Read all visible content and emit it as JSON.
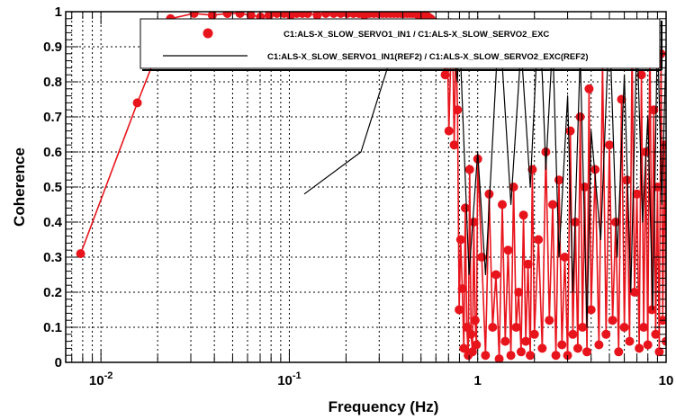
{
  "chart_data": {
    "type": "line",
    "xlabel": "Frequency (Hz)",
    "ylabel": "Coherence",
    "xscale": "log",
    "xlim": [
      0.0065,
      10
    ],
    "ylim": [
      0,
      1
    ],
    "grid": true,
    "legend_position": "top-right",
    "x_tick_labels": [
      {
        "value": 0.01,
        "base": "10",
        "exp": "-2"
      },
      {
        "value": 0.1,
        "base": "10",
        "exp": "-1"
      },
      {
        "value": 1,
        "base": "1",
        "exp": ""
      },
      {
        "value": 10,
        "base": "10",
        "exp": ""
      }
    ],
    "y_tick_labels": [
      {
        "value": 0,
        "label": "0"
      },
      {
        "value": 0.1,
        "label": "0.1"
      },
      {
        "value": 0.2,
        "label": "0.2"
      },
      {
        "value": 0.3,
        "label": "0.3"
      },
      {
        "value": 0.4,
        "label": "0.4"
      },
      {
        "value": 0.5,
        "label": "0.5"
      },
      {
        "value": 0.6,
        "label": "0.6"
      },
      {
        "value": 0.7,
        "label": "0.7"
      },
      {
        "value": 0.8,
        "label": "0.8"
      },
      {
        "value": 0.9,
        "label": "0.9"
      },
      {
        "value": 1,
        "label": "1"
      }
    ],
    "series": [
      {
        "name": "C1:ALS-X_SLOW_SERVO1_IN1 / C1:ALS-X_SLOW_SERVO2_EXC",
        "style": "line-markers",
        "color": "#e8141c",
        "x": [
          0.0078,
          0.0156,
          0.0234,
          0.0312,
          0.039,
          0.0469,
          0.0547,
          0.0625,
          0.0703,
          0.0781,
          0.0859,
          0.0938,
          0.1016,
          0.1094,
          0.1172,
          0.125,
          0.1406,
          0.1562,
          0.1719,
          0.1875,
          0.2031,
          0.2188,
          0.2344,
          0.25,
          0.2656,
          0.2812,
          0.2969,
          0.3125,
          0.3281,
          0.3438,
          0.3594,
          0.375,
          0.3906,
          0.4062,
          0.4219,
          0.4375,
          0.4531,
          0.4688,
          0.4844,
          0.5,
          0.5156,
          0.5312,
          0.5469,
          0.5625,
          0.5781,
          0.5938,
          0.6094,
          0.625,
          0.6406,
          0.6562,
          0.6719,
          0.6875,
          0.7031,
          0.7188,
          0.7344,
          0.75,
          0.7656,
          0.7812,
          0.7969,
          0.8125,
          0.8281,
          0.8438,
          0.8594,
          0.875,
          0.8906,
          0.9062,
          0.9219,
          0.9375,
          0.9531,
          0.9688,
          0.9844,
          1.0,
          1.05,
          1.1,
          1.15,
          1.2,
          1.25,
          1.3,
          1.35,
          1.4,
          1.45,
          1.5,
          1.55,
          1.6,
          1.65,
          1.7,
          1.75,
          1.8,
          1.85,
          1.9,
          1.95,
          2.0,
          2.1,
          2.2,
          2.3,
          2.4,
          2.5,
          2.6,
          2.7,
          2.8,
          2.9,
          3.0,
          3.1,
          3.2,
          3.3,
          3.4,
          3.5,
          3.6,
          3.7,
          3.8,
          3.9,
          4.0,
          4.2,
          4.4,
          4.6,
          4.8,
          5.0,
          5.2,
          5.4,
          5.6,
          5.8,
          6.0,
          6.2,
          6.4,
          6.6,
          6.8,
          7.0,
          7.2,
          7.4,
          7.6,
          7.8,
          8.0,
          8.2,
          8.4,
          8.6,
          8.8,
          9.0,
          9.2,
          9.4,
          9.6,
          9.8,
          10.0
        ],
        "y": [
          0.31,
          0.74,
          0.98,
          0.995,
          0.99,
          0.995,
          0.995,
          0.99,
          0.985,
          0.99,
          0.995,
          0.995,
          0.99,
          0.995,
          0.995,
          0.995,
          0.99,
          0.995,
          0.995,
          0.995,
          0.995,
          0.995,
          0.995,
          0.99,
          0.995,
          0.995,
          0.995,
          0.995,
          0.995,
          0.995,
          0.995,
          0.995,
          0.995,
          0.995,
          0.995,
          0.995,
          0.995,
          0.995,
          0.99,
          0.995,
          0.99,
          0.99,
          0.985,
          0.98,
          0.97,
          0.97,
          0.95,
          0.93,
          0.9,
          0.88,
          0.82,
          0.95,
          0.66,
          0.86,
          0.95,
          0.62,
          0.92,
          0.72,
          0.15,
          0.35,
          0.21,
          0.04,
          0.44,
          0.1,
          0.02,
          0.55,
          0.08,
          0.03,
          0.4,
          0.12,
          0.05,
          0.58,
          0.3,
          0.02,
          0.48,
          0.1,
          0.25,
          0.01,
          0.45,
          0.06,
          0.32,
          0.02,
          0.5,
          0.1,
          0.2,
          0.03,
          0.42,
          0.06,
          0.28,
          0.02,
          0.55,
          0.08,
          0.35,
          0.04,
          0.6,
          0.12,
          0.45,
          0.02,
          0.52,
          0.05,
          0.3,
          0.02,
          0.66,
          0.08,
          0.4,
          0.04,
          0.7,
          0.1,
          0.5,
          0.03,
          0.78,
          0.15,
          0.55,
          0.05,
          0.85,
          0.08,
          0.62,
          0.12,
          0.4,
          0.03,
          0.75,
          0.1,
          0.52,
          0.06,
          0.9,
          0.2,
          0.48,
          0.04,
          0.82,
          0.1,
          0.6,
          0.05,
          0.96,
          0.15,
          0.72,
          0.08,
          0.5,
          0.03,
          0.88,
          0.12,
          0.62,
          0.06
        ]
      },
      {
        "name": "C1:ALS-X_SLOW_SERVO1_IN1(REF2) / C1:ALS-X_SLOW_SERVO2_EXC(REF2)",
        "style": "line",
        "color": "#000000",
        "x": [
          0.12,
          0.24,
          0.36,
          0.5,
          0.62,
          0.72,
          0.78,
          0.8,
          0.9,
          1.0,
          1.1,
          1.3,
          1.5,
          1.7,
          1.9,
          2.1,
          2.2,
          2.3,
          2.5,
          2.7,
          3.0,
          3.2,
          3.5,
          3.8,
          4.0,
          4.5,
          5.0,
          5.5,
          6.0,
          6.5,
          7.0,
          7.5,
          8.0,
          8.5,
          9.0,
          9.5,
          10.0
        ],
        "y": [
          0.48,
          0.6,
          0.9,
          0.95,
          0.97,
          0.98,
          0.8,
          0.95,
          0.25,
          0.6,
          0.25,
          0.99,
          0.45,
          0.9,
          0.5,
          0.98,
          0.82,
          0.55,
          0.92,
          0.3,
          0.76,
          0.2,
          0.88,
          0.1,
          0.66,
          0.35,
          0.98,
          0.3,
          0.82,
          0.2,
          0.94,
          0.4,
          0.7,
          0.15,
          0.95,
          0.45,
          0.9
        ]
      }
    ]
  }
}
